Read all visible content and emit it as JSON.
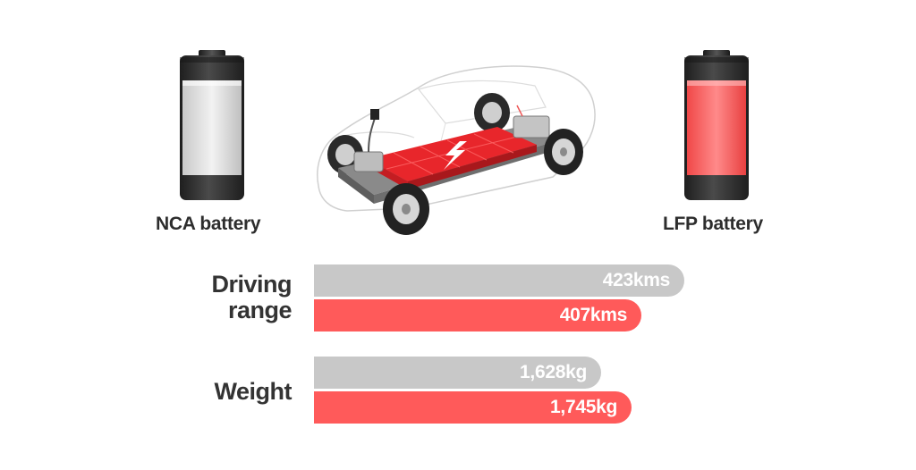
{
  "colors": {
    "nca": "#c8c8c8",
    "lfp": "#ff5a5a",
    "battery_body": "#2b2b2b",
    "text": "#333333"
  },
  "batteries": {
    "left_label": "NCA battery",
    "right_label": "LFP battery"
  },
  "illustration": {
    "subject": "electric-car-battery-platform"
  },
  "chart_data": {
    "type": "bar",
    "orientation": "horizontal",
    "categories": [
      "Driving range",
      "Weight"
    ],
    "series": [
      {
        "name": "NCA battery",
        "color": "#c8c8c8",
        "values": [
          423,
          1628
        ],
        "labels": [
          "423kms",
          "1,628kg"
        ]
      },
      {
        "name": "LFP battery",
        "color": "#ff5a5a",
        "values": [
          407,
          1745
        ],
        "labels": [
          "407kms",
          "1,745kg"
        ]
      }
    ],
    "category_label_lines": [
      [
        "Driving",
        "range"
      ],
      [
        "Weight"
      ]
    ],
    "grid": false
  }
}
